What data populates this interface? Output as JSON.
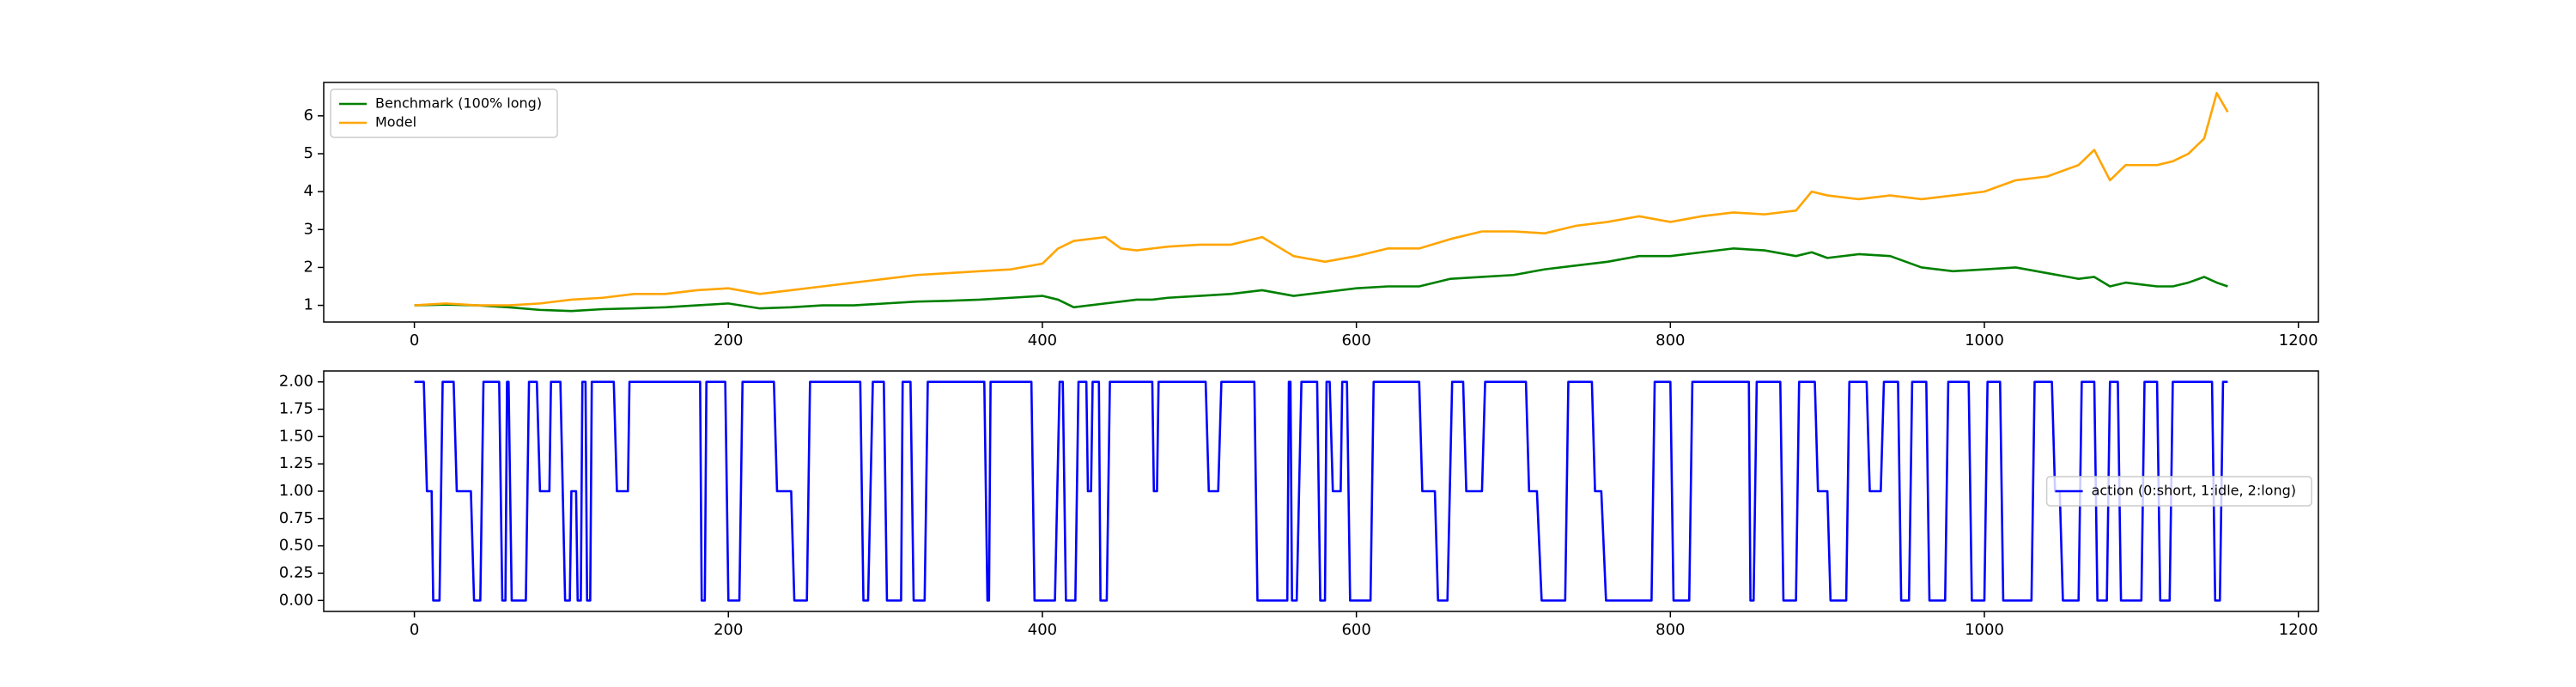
{
  "chart_data": [
    {
      "type": "line",
      "legend": "upper left",
      "grid": false,
      "xlim": [
        -57.75,
        1212.75
      ],
      "ylim": [
        0.56,
        6.88
      ],
      "xticks": [
        0,
        200,
        400,
        600,
        800,
        1000,
        1200
      ],
      "yticks": [
        1,
        2,
        3,
        4,
        5,
        6
      ],
      "x": [
        0,
        20,
        40,
        60,
        80,
        100,
        120,
        140,
        160,
        180,
        200,
        220,
        240,
        260,
        280,
        300,
        320,
        340,
        360,
        380,
        400,
        410,
        420,
        440,
        450,
        460,
        470,
        480,
        500,
        520,
        540,
        560,
        580,
        600,
        620,
        640,
        660,
        680,
        700,
        720,
        740,
        760,
        780,
        800,
        820,
        840,
        860,
        880,
        890,
        900,
        920,
        940,
        960,
        980,
        1000,
        1020,
        1040,
        1060,
        1070,
        1080,
        1090,
        1100,
        1110,
        1120,
        1130,
        1140,
        1148,
        1155
      ],
      "series": [
        {
          "name": "Benchmark (100% long)",
          "color": "#008000",
          "values": [
            1.0,
            1.02,
            1.0,
            0.95,
            0.88,
            0.85,
            0.9,
            0.92,
            0.95,
            1.0,
            1.05,
            0.92,
            0.95,
            1.0,
            1.0,
            1.05,
            1.1,
            1.12,
            1.15,
            1.2,
            1.25,
            1.15,
            0.95,
            1.05,
            1.1,
            1.15,
            1.15,
            1.2,
            1.25,
            1.3,
            1.4,
            1.25,
            1.35,
            1.45,
            1.5,
            1.5,
            1.7,
            1.75,
            1.8,
            1.95,
            2.05,
            2.15,
            2.3,
            2.3,
            2.4,
            2.5,
            2.45,
            2.3,
            2.4,
            2.25,
            2.35,
            2.3,
            2.0,
            1.9,
            1.95,
            2.0,
            1.85,
            1.7,
            1.75,
            1.5,
            1.6,
            1.55,
            1.5,
            1.5,
            1.6,
            1.75,
            1.6,
            1.5
          ]
        },
        {
          "name": "Model",
          "color": "#ffa500",
          "values": [
            1.0,
            1.05,
            1.0,
            1.0,
            1.05,
            1.15,
            1.2,
            1.3,
            1.3,
            1.4,
            1.45,
            1.3,
            1.4,
            1.5,
            1.6,
            1.7,
            1.8,
            1.85,
            1.9,
            1.95,
            2.1,
            2.5,
            2.7,
            2.8,
            2.5,
            2.45,
            2.5,
            2.55,
            2.6,
            2.6,
            2.8,
            2.3,
            2.15,
            2.3,
            2.5,
            2.5,
            2.75,
            2.95,
            2.95,
            2.9,
            3.1,
            3.2,
            3.35,
            3.2,
            3.35,
            3.45,
            3.4,
            3.5,
            4.0,
            3.9,
            3.8,
            3.9,
            3.8,
            3.9,
            4.0,
            4.3,
            4.4,
            4.7,
            5.1,
            4.3,
            4.7,
            4.7,
            4.7,
            4.8,
            5.0,
            5.4,
            6.6,
            6.1
          ]
        }
      ]
    },
    {
      "type": "line",
      "legend": "center right",
      "grid": false,
      "xlim": [
        -57.75,
        1212.75
      ],
      "ylim": [
        -0.1,
        2.1
      ],
      "xticks": [
        0,
        200,
        400,
        600,
        800,
        1000,
        1200
      ],
      "yticks": [
        {
          "value": 0,
          "label": "0.00"
        },
        {
          "value": 0.25,
          "label": "0.25"
        },
        {
          "value": 0.5,
          "label": "0.50"
        },
        {
          "value": 0.75,
          "label": "0.75"
        },
        {
          "value": 1,
          "label": "1.00"
        },
        {
          "value": 1.25,
          "label": "1.25"
        },
        {
          "value": 1.5,
          "label": "1.50"
        },
        {
          "value": 1.75,
          "label": "1.75"
        },
        {
          "value": 2,
          "label": "2.00"
        }
      ],
      "x": [
        0,
        6,
        8,
        11,
        12,
        16,
        18,
        25,
        27,
        36,
        38,
        42,
        44,
        54,
        56,
        58,
        59,
        60,
        62,
        71,
        73,
        78,
        80,
        86,
        87,
        93,
        96,
        99,
        100,
        103,
        104,
        106,
        107,
        109,
        110,
        112,
        113,
        127,
        129,
        136,
        137,
        182,
        183,
        185,
        186,
        198,
        200,
        207,
        209,
        229,
        231,
        240,
        242,
        250,
        252,
        284,
        286,
        289,
        292,
        299,
        301,
        310,
        311,
        316,
        318,
        325,
        327,
        363,
        365,
        366,
        367,
        393,
        395,
        408,
        411,
        413,
        415,
        421,
        423,
        428,
        429,
        431,
        432,
        436,
        437,
        441,
        443,
        470,
        471,
        473,
        474,
        504,
        506,
        512,
        514,
        535,
        537,
        556,
        557,
        558,
        559,
        562,
        565,
        575,
        577,
        580,
        581,
        583,
        585,
        590,
        591,
        594,
        596,
        609,
        611,
        640,
        642,
        650,
        652,
        658,
        661,
        668,
        670,
        680,
        682,
        708,
        710,
        715,
        718,
        733,
        735,
        750,
        752,
        756,
        759,
        788,
        790,
        800,
        802,
        812,
        814,
        850,
        851,
        853,
        855,
        870,
        872,
        880,
        882,
        892,
        894,
        900,
        902,
        912,
        914,
        925,
        927,
        934,
        936,
        945,
        947,
        952,
        954,
        963,
        965,
        975,
        977,
        990,
        992,
        1000,
        1002,
        1010,
        1012,
        1030,
        1032,
        1043,
        1045,
        1048,
        1050,
        1060,
        1062,
        1070,
        1072,
        1078,
        1080,
        1085,
        1087,
        1100,
        1102,
        1110,
        1112,
        1118,
        1120,
        1145,
        1147,
        1150,
        1152,
        1155
      ],
      "series": [
        {
          "name": "action (0:short, 1:idle, 2:long)",
          "color": "#0000ff",
          "values": [
            2,
            2,
            1,
            1,
            0,
            0,
            2,
            2,
            1,
            1,
            0,
            0,
            2,
            2,
            0,
            0,
            2,
            2,
            0,
            0,
            2,
            2,
            1,
            1,
            2,
            2,
            0,
            0,
            1,
            1,
            0,
            0,
            2,
            2,
            0,
            0,
            2,
            2,
            1,
            1,
            2,
            2,
            0,
            0,
            2,
            2,
            0,
            0,
            2,
            2,
            1,
            1,
            0,
            0,
            2,
            2,
            0,
            0,
            2,
            2,
            0,
            0,
            2,
            2,
            0,
            0,
            2,
            2,
            0,
            0,
            2,
            2,
            0,
            0,
            2,
            2,
            0,
            0,
            2,
            2,
            1,
            1,
            2,
            2,
            0,
            0,
            2,
            2,
            1,
            1,
            2,
            2,
            1,
            1,
            2,
            2,
            0,
            0,
            2,
            2,
            0,
            0,
            2,
            2,
            0,
            0,
            2,
            2,
            1,
            1,
            2,
            2,
            0,
            0,
            2,
            2,
            1,
            1,
            0,
            0,
            2,
            2,
            1,
            1,
            2,
            2,
            1,
            1,
            0,
            0,
            2,
            2,
            1,
            1,
            0,
            0,
            2,
            2,
            0,
            0,
            2,
            2,
            0,
            0,
            2,
            2,
            0,
            0,
            2,
            2,
            1,
            1,
            0,
            0,
            2,
            2,
            1,
            1,
            2,
            2,
            0,
            0,
            2,
            2,
            0,
            0,
            2,
            2,
            0,
            0,
            2,
            2,
            0,
            0,
            2,
            2,
            1,
            1,
            0,
            0,
            2,
            2,
            0,
            0,
            2,
            2,
            0,
            0,
            2,
            2,
            0,
            0,
            2,
            2,
            0,
            0,
            2,
            2
          ]
        }
      ]
    }
  ]
}
